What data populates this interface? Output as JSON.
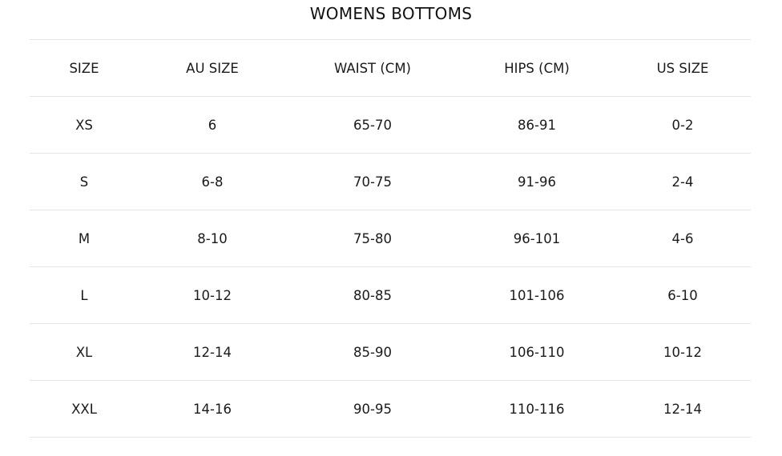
{
  "title": "WOMENS BOTTOMS",
  "headers": [
    "SIZE",
    "AU SIZE",
    "WAIST (CM)",
    "HIPS (CM)",
    "US SIZE"
  ],
  "rows": [
    [
      "XS",
      "6",
      "65-70",
      "86-91",
      "0-2"
    ],
    [
      "S",
      "6-8",
      "70-75",
      "91-96",
      "2-4"
    ],
    [
      "M",
      "8-10",
      "75-80",
      "96-101",
      "4-6"
    ],
    [
      "L",
      "10-12",
      "80-85",
      "101-106",
      "6-10"
    ],
    [
      "XL",
      "12-14",
      "85-90",
      "106-110",
      "10-12"
    ],
    [
      "XXL",
      "14-16",
      "90-95",
      "110-116",
      "12-14"
    ]
  ]
}
